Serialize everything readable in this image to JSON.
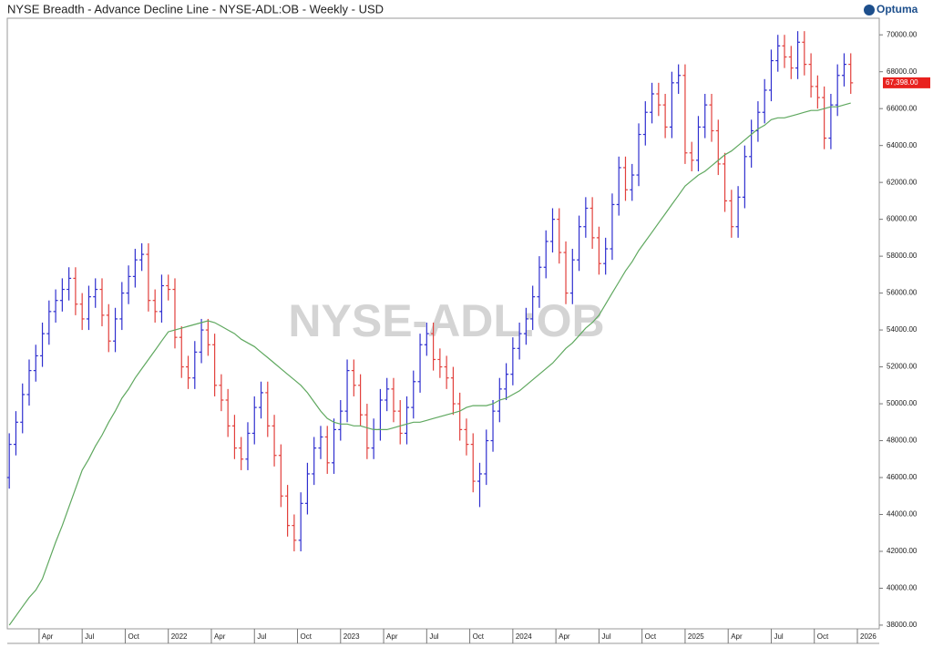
{
  "chart_data": {
    "type": "ohlc",
    "title": "NYSE Breadth - Advance Decline Line - NYSE-ADL:OB - Weekly - USD",
    "watermark": "NYSE-ADL:OB",
    "brand": "Optuma",
    "up_color": "#2f2fcf",
    "down_color": "#e2403c",
    "grid": false,
    "xlim": [
      -0.3,
      131.3
    ],
    "ylim": [
      37800,
      70900
    ],
    "xticks": [
      {
        "value": 4.5,
        "label": "Apr"
      },
      {
        "value": 11,
        "label": "Jul"
      },
      {
        "value": 17.5,
        "label": "Oct"
      },
      {
        "value": 24,
        "label": "2022"
      },
      {
        "value": 30.5,
        "label": "Apr"
      },
      {
        "value": 37,
        "label": "Jul"
      },
      {
        "value": 43.5,
        "label": "Oct"
      },
      {
        "value": 50,
        "label": "2023"
      },
      {
        "value": 56.5,
        "label": "Apr"
      },
      {
        "value": 63,
        "label": "Jul"
      },
      {
        "value": 69.5,
        "label": "Oct"
      },
      {
        "value": 76,
        "label": "2024"
      },
      {
        "value": 82.5,
        "label": "Apr"
      },
      {
        "value": 89,
        "label": "Jul"
      },
      {
        "value": 95.5,
        "label": "Oct"
      },
      {
        "value": 102,
        "label": "2025"
      },
      {
        "value": 108.5,
        "label": "Apr"
      },
      {
        "value": 115,
        "label": "Jul"
      },
      {
        "value": 121.5,
        "label": "Oct"
      },
      {
        "value": 128,
        "label": "2026"
      }
    ],
    "yticks": [
      {
        "value": 38000,
        "label": "38000.00"
      },
      {
        "value": 40000,
        "label": "40000.00"
      },
      {
        "value": 42000,
        "label": "42000.00"
      },
      {
        "value": 44000,
        "label": "44000.00"
      },
      {
        "value": 46000,
        "label": "46000.00"
      },
      {
        "value": 48000,
        "label": "48000.00"
      },
      {
        "value": 50000,
        "label": "50000.00"
      },
      {
        "value": 52000,
        "label": "52000.00"
      },
      {
        "value": 54000,
        "label": "54000.00"
      },
      {
        "value": 56000,
        "label": "56000.00"
      },
      {
        "value": 58000,
        "label": "58000.00"
      },
      {
        "value": 60000,
        "label": "60000.00"
      },
      {
        "value": 62000,
        "label": "62000.00"
      },
      {
        "value": 64000,
        "label": "64000.00"
      },
      {
        "value": 66000,
        "label": "66000.00"
      },
      {
        "value": 68000,
        "label": "68000.00"
      },
      {
        "value": 70000,
        "label": "70000.00"
      }
    ],
    "last_price": {
      "value": 67398,
      "label": "67,398.00",
      "color": "#e8211e"
    },
    "open": [
      46000,
      47800,
      49000,
      50500,
      51800,
      52600,
      53800,
      55000,
      55600,
      56200,
      56800,
      55400,
      54600,
      55800,
      56200,
      54800,
      53400,
      54600,
      56000,
      56900,
      57800,
      58100,
      55600,
      55000,
      56400,
      56200,
      53600,
      52000,
      51400,
      52800,
      54000,
      53200,
      51000,
      50200,
      48800,
      47600,
      47000,
      48400,
      49800,
      50600,
      48800,
      47200,
      45000,
      43400,
      42600,
      44600,
      46200,
      47600,
      48200,
      46800,
      48600,
      49600,
      51800,
      51000,
      49400,
      47600,
      48600,
      50200,
      50800,
      49600,
      48400,
      49800,
      51200,
      53200,
      53800,
      52400,
      52000,
      51400,
      50000,
      48600,
      47800,
      45800,
      46200,
      48000,
      49600,
      50800,
      51600,
      53000,
      53800,
      54600,
      55800,
      57400,
      58800,
      60000,
      58200,
      56000,
      57800,
      59600,
      60600,
      59000,
      57600,
      58400,
      60800,
      62800,
      61600,
      62400,
      64600,
      65800,
      66800,
      66200,
      65000,
      67400,
      67800,
      63600,
      63200,
      65000,
      66200,
      64800,
      63000,
      61000,
      59600,
      61200,
      63400,
      64800,
      65800,
      67000,
      68600,
      69400,
      68800,
      68200,
      69600,
      68400,
      67200,
      66600,
      64400,
      66200,
      67800,
      68400
    ],
    "high": [
      48400,
      49600,
      51100,
      52400,
      53200,
      54400,
      55600,
      56200,
      56800,
      57400,
      57400,
      56000,
      56400,
      56800,
      56800,
      55400,
      55200,
      56600,
      57500,
      58400,
      58700,
      58700,
      56200,
      57000,
      57000,
      56800,
      54200,
      52600,
      53400,
      54600,
      54600,
      53800,
      51600,
      50800,
      49400,
      48200,
      49000,
      50400,
      51200,
      51200,
      49400,
      47800,
      45600,
      44000,
      45200,
      46800,
      48200,
      48800,
      48800,
      49200,
      50200,
      52400,
      52400,
      51600,
      50000,
      49200,
      50800,
      51400,
      51400,
      50200,
      50400,
      51800,
      53800,
      54400,
      54400,
      53000,
      52600,
      52000,
      50600,
      49200,
      48400,
      46800,
      48600,
      50200,
      51400,
      52200,
      53600,
      54400,
      55200,
      56400,
      58000,
      59400,
      60600,
      60600,
      58800,
      58400,
      60200,
      61200,
      61200,
      59600,
      59000,
      61400,
      63400,
      63400,
      63000,
      65200,
      66400,
      67400,
      67400,
      66800,
      68000,
      68400,
      68400,
      64200,
      65600,
      66800,
      66800,
      65400,
      63600,
      61600,
      61800,
      64000,
      65400,
      66400,
      67600,
      69200,
      70000,
      70000,
      69400,
      70200,
      70200,
      69000,
      67800,
      67200,
      66800,
      68400,
      69000,
      69000
    ],
    "low": [
      45400,
      47200,
      48400,
      49900,
      51200,
      52000,
      53200,
      54400,
      55000,
      55600,
      54800,
      54000,
      54000,
      55200,
      54200,
      52800,
      52800,
      54000,
      55400,
      56300,
      57200,
      55000,
      54400,
      54400,
      55600,
      53000,
      51400,
      50800,
      50800,
      52200,
      52600,
      50400,
      49600,
      48200,
      47000,
      46400,
      46400,
      47800,
      49200,
      48200,
      46600,
      44400,
      42800,
      42000,
      42000,
      44000,
      45600,
      47000,
      46200,
      46200,
      48000,
      49000,
      50400,
      48800,
      47000,
      47000,
      48000,
      49600,
      49000,
      47800,
      47800,
      49200,
      50600,
      52600,
      51800,
      51400,
      50800,
      49400,
      48000,
      47200,
      45200,
      44400,
      45600,
      47400,
      49000,
      50200,
      51000,
      52400,
      53200,
      54000,
      55200,
      56800,
      58200,
      57600,
      55400,
      55400,
      57200,
      59000,
      58400,
      57000,
      57000,
      57800,
      60200,
      61000,
      61000,
      61800,
      64000,
      65200,
      65600,
      64400,
      64400,
      66800,
      63000,
      62600,
      62600,
      64400,
      64200,
      62400,
      60400,
      59000,
      59000,
      60600,
      62800,
      64200,
      65200,
      66400,
      68000,
      68200,
      67600,
      67600,
      67800,
      66600,
      66000,
      63800,
      63800,
      65600,
      67200,
      66800
    ],
    "close": [
      47800,
      49000,
      50500,
      51800,
      52600,
      53800,
      55000,
      55600,
      56200,
      56800,
      55400,
      54600,
      55800,
      56200,
      54800,
      53400,
      54600,
      56000,
      56900,
      57800,
      58100,
      55600,
      55000,
      56400,
      56200,
      53600,
      52000,
      51400,
      52800,
      54000,
      53200,
      51000,
      50200,
      48800,
      47600,
      47000,
      48400,
      49800,
      50600,
      48800,
      47200,
      45000,
      43400,
      42600,
      44600,
      46200,
      47600,
      48200,
      46800,
      48600,
      49600,
      51800,
      51000,
      49400,
      47600,
      48600,
      50200,
      50800,
      49600,
      48400,
      49800,
      51200,
      53200,
      53800,
      52400,
      52000,
      51400,
      50000,
      48600,
      47800,
      45800,
      46200,
      48000,
      49600,
      50800,
      51600,
      53000,
      53800,
      54600,
      55800,
      57400,
      58800,
      60000,
      58200,
      56000,
      57800,
      59600,
      60600,
      59000,
      57600,
      58400,
      60800,
      62800,
      61600,
      62400,
      64600,
      65800,
      66800,
      66200,
      65000,
      67400,
      67800,
      63600,
      63200,
      65000,
      66200,
      64800,
      63000,
      61000,
      59600,
      61200,
      63400,
      64800,
      65800,
      67000,
      68600,
      69400,
      68800,
      68200,
      69600,
      68400,
      67200,
      66600,
      64400,
      66200,
      67800,
      68400,
      67398
    ],
    "ma": {
      "color": "#5fa85f",
      "values": [
        38000,
        38500,
        39000,
        39500,
        39900,
        40500,
        41500,
        42500,
        43400,
        44400,
        45400,
        46400,
        47000,
        47700,
        48300,
        49000,
        49600,
        50300,
        50800,
        51400,
        51900,
        52400,
        52900,
        53400,
        53900,
        54000,
        54100,
        54200,
        54300,
        54400,
        54500,
        54400,
        54200,
        54000,
        53800,
        53500,
        53300,
        53100,
        52800,
        52500,
        52200,
        51900,
        51600,
        51300,
        51000,
        50600,
        50100,
        49600,
        49200,
        49000,
        48900,
        48900,
        48800,
        48800,
        48700,
        48600,
        48600,
        48600,
        48700,
        48800,
        48900,
        49000,
        49000,
        49100,
        49200,
        49300,
        49400,
        49500,
        49600,
        49800,
        49900,
        49900,
        49900,
        50000,
        50200,
        50300,
        50500,
        50700,
        51000,
        51300,
        51600,
        51900,
        52200,
        52600,
        53000,
        53300,
        53700,
        54100,
        54400,
        54800,
        55400,
        56000,
        56600,
        57200,
        57700,
        58300,
        58800,
        59300,
        59800,
        60300,
        60800,
        61300,
        61800,
        62100,
        62400,
        62600,
        62900,
        63200,
        63500,
        63700,
        64000,
        64300,
        64600,
        64900,
        65100,
        65400,
        65500,
        65500,
        65600,
        65700,
        65800,
        65900,
        65900,
        66000,
        66100,
        66100,
        66200,
        66300
      ]
    }
  }
}
